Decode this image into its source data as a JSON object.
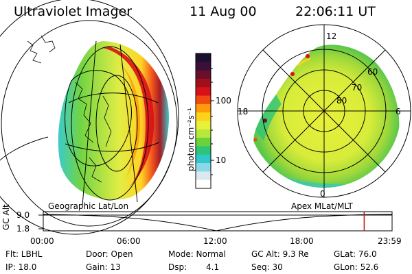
{
  "header": {
    "title": "Ultraviolet Imager",
    "date": "11 Aug 00",
    "time": "22:06:11 UT"
  },
  "colorbar": {
    "unit_label": "photon cm⁻²s⁻¹",
    "ticks": [
      "100",
      "10"
    ],
    "colors": [
      "#1a1030",
      "#3b0f3a",
      "#6a0f2a",
      "#a0101a",
      "#d8101a",
      "#f04a10",
      "#ff9a0a",
      "#ffd21a",
      "#e8f03a",
      "#b8e83a",
      "#6ad23a",
      "#2ec47a",
      "#30c8c8",
      "#8ad8e8",
      "#dce8f0",
      "#ffffff"
    ]
  },
  "left_panel": {
    "label": "Geographic Lat/Lon"
  },
  "right_panel": {
    "label": "Apex MLat/MLT",
    "mlt_labels": [
      "12",
      "18",
      "6",
      "0"
    ],
    "lat_labels": [
      "60",
      "70",
      "80"
    ]
  },
  "timeline": {
    "axis_label": "GC Alt",
    "y_ticks": [
      "9.0",
      "1.8"
    ],
    "x_ticks": [
      "00:00",
      "06:00",
      "12:00",
      "18:00",
      "23:59"
    ],
    "current_time_fraction": 0.92
  },
  "info": {
    "flt": "Flt: LBHL",
    "ip": "IP: 18.0",
    "door": "Door: Open",
    "gain": "Gain: 13",
    "mode": "Mode: Normal",
    "dsp_label": "Dsp:",
    "dsp_value": "4.1",
    "gc_alt": "GC Alt: 9.3 Re",
    "seq": "Seq: 30",
    "glat": "GLat: 76.0",
    "glon": "GLon: 52.6"
  }
}
